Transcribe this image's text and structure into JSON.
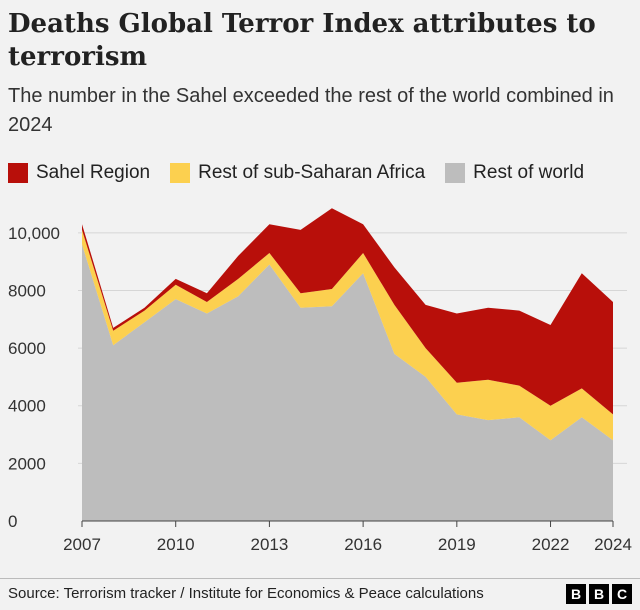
{
  "header": {
    "title": "Deaths Global Terror Index attributes to terrorism",
    "subtitle": "The number in the Sahel exceeded the rest of the world combined in 2024"
  },
  "legend": [
    {
      "label": "Sahel Region",
      "color": "#b80f0a"
    },
    {
      "label": "Rest of sub-Saharan Africa",
      "color": "#fcd04f"
    },
    {
      "label": "Rest of world",
      "color": "#bdbdbd"
    }
  ],
  "footer": {
    "source": "Source: Terrorism tracker / Institute for Economics & Peace calculations",
    "logo": [
      "B",
      "B",
      "C"
    ]
  },
  "chart_data": {
    "type": "area",
    "stacked": true,
    "title": "Deaths Global Terror Index attributes to terrorism",
    "xlabel": "",
    "ylabel": "",
    "x": [
      2007,
      2008,
      2009,
      2010,
      2011,
      2012,
      2013,
      2014,
      2015,
      2016,
      2017,
      2018,
      2019,
      2020,
      2021,
      2022,
      2023,
      2024
    ],
    "xticks": [
      2007,
      2010,
      2013,
      2016,
      2019,
      2022,
      2024
    ],
    "xtick_labels": [
      "2007",
      "2010",
      "2013",
      "2016",
      "2019",
      "2022",
      "2024"
    ],
    "ylim": [
      0,
      11000
    ],
    "yticks": [
      0,
      2000,
      4000,
      6000,
      8000,
      10000
    ],
    "ytick_labels": [
      "0",
      "2000",
      "4000",
      "6000",
      "8000",
      "10,000"
    ],
    "grid": true,
    "series": [
      {
        "name": "Rest of world",
        "color": "#bdbdbd",
        "values": [
          9600,
          6100,
          6900,
          7700,
          7200,
          7800,
          8900,
          7400,
          7450,
          8600,
          5800,
          5000,
          3700,
          3500,
          3600,
          2800,
          3600,
          2800
        ]
      },
      {
        "name": "Rest of sub-Saharan Africa",
        "color": "#fcd04f",
        "values": [
          500,
          500,
          400,
          500,
          400,
          600,
          400,
          500,
          600,
          700,
          1700,
          1000,
          1100,
          1400,
          1100,
          1200,
          1000,
          900
        ]
      },
      {
        "name": "Sahel Region",
        "color": "#b80f0a",
        "values": [
          200,
          100,
          100,
          200,
          300,
          800,
          1000,
          2200,
          2800,
          1000,
          1300,
          1500,
          2400,
          2500,
          2600,
          2800,
          4000,
          3900
        ]
      }
    ]
  }
}
